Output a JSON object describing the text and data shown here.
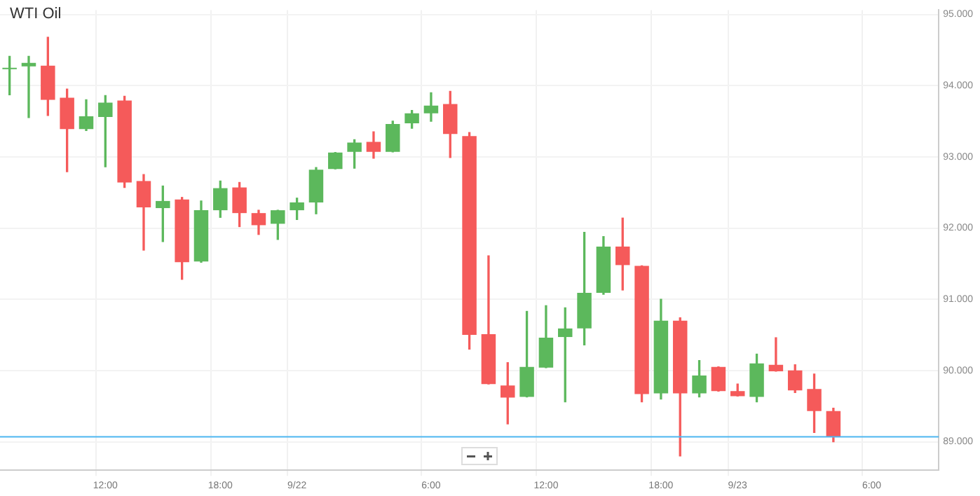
{
  "chart_data": {
    "type": "candlestick",
    "title": "WTI Oil",
    "categories": [
      null,
      null,
      null,
      null,
      null,
      "12:00",
      null,
      null,
      null,
      null,
      null,
      "18:00",
      null,
      null,
      null,
      "9/22",
      null,
      null,
      null,
      null,
      null,
      null,
      "6:00",
      null,
      null,
      null,
      null,
      null,
      "12:00",
      null,
      null,
      null,
      null,
      null,
      "18:00",
      null,
      null,
      null,
      "9/23",
      null,
      null,
      null,
      null,
      null,
      null,
      "6:00",
      null,
      null,
      null
    ],
    "ohlc": [
      [
        94.23,
        94.41,
        93.87,
        94.25
      ],
      [
        94.27,
        94.41,
        93.55,
        94.32
      ],
      [
        94.28,
        94.68,
        93.58,
        93.8
      ],
      [
        93.83,
        93.95,
        92.79,
        93.39
      ],
      [
        93.39,
        93.8,
        93.37,
        93.57
      ],
      [
        93.56,
        93.86,
        92.86,
        93.76
      ],
      [
        93.79,
        93.85,
        92.57,
        92.64
      ],
      [
        92.66,
        92.75,
        91.69,
        92.29
      ],
      [
        92.28,
        92.59,
        91.81,
        92.38
      ],
      [
        92.4,
        92.43,
        91.28,
        91.52
      ],
      [
        91.53,
        92.38,
        91.52,
        92.25
      ],
      [
        92.25,
        92.66,
        92.15,
        92.56
      ],
      [
        92.57,
        92.64,
        92.02,
        92.21
      ],
      [
        92.21,
        92.25,
        91.91,
        92.04
      ],
      [
        92.06,
        92.25,
        91.84,
        92.25
      ],
      [
        92.25,
        92.42,
        92.12,
        92.36
      ],
      [
        92.36,
        92.85,
        92.2,
        92.82
      ],
      [
        92.83,
        93.06,
        92.83,
        93.06
      ],
      [
        93.07,
        93.24,
        92.84,
        93.2
      ],
      [
        93.21,
        93.35,
        92.98,
        93.07
      ],
      [
        93.07,
        93.5,
        93.07,
        93.46
      ],
      [
        93.47,
        93.65,
        93.4,
        93.61
      ],
      [
        93.61,
        93.9,
        93.5,
        93.72
      ],
      [
        93.74,
        93.92,
        92.99,
        93.32
      ],
      [
        93.29,
        93.34,
        90.3,
        90.5
      ],
      [
        90.51,
        91.61,
        89.81,
        89.81
      ],
      [
        89.79,
        90.11,
        89.25,
        89.62
      ],
      [
        89.63,
        90.83,
        89.63,
        90.05
      ],
      [
        90.04,
        90.91,
        90.04,
        90.46
      ],
      [
        90.47,
        90.88,
        89.56,
        90.59
      ],
      [
        90.59,
        91.94,
        90.36,
        91.09
      ],
      [
        91.09,
        91.88,
        91.07,
        91.74
      ],
      [
        91.74,
        92.14,
        91.13,
        91.48
      ],
      [
        91.47,
        91.47,
        89.56,
        89.67
      ],
      [
        89.68,
        91.0,
        89.6,
        90.7
      ],
      [
        90.7,
        90.74,
        88.8,
        89.68
      ],
      [
        89.68,
        90.14,
        89.63,
        89.93
      ],
      [
        90.05,
        90.05,
        89.71,
        89.71
      ],
      [
        89.71,
        89.81,
        89.64,
        89.64
      ],
      [
        89.63,
        90.23,
        89.56,
        90.1
      ],
      [
        90.08,
        90.46,
        89.99,
        89.99
      ],
      [
        90.0,
        90.08,
        89.69,
        89.72
      ],
      [
        89.74,
        89.95,
        89.13,
        89.43
      ],
      [
        89.43,
        89.47,
        89.0,
        89.07
      ],
      null,
      null,
      null,
      null,
      null
    ],
    "ylim": [
      88.6,
      95.06
    ],
    "yticks": [
      {
        "value": 89,
        "label": "89.000"
      },
      {
        "value": 90,
        "label": "90.000"
      },
      {
        "value": 91,
        "label": "91.000"
      },
      {
        "value": 92,
        "label": "92.000"
      },
      {
        "value": 93,
        "label": "93.000"
      },
      {
        "value": 94,
        "label": "94.000"
      },
      {
        "value": 95,
        "label": "95.000"
      }
    ],
    "ref_lines": [
      {
        "axis": "y",
        "value": 89.07,
        "color": "#4db6f0"
      }
    ],
    "grid": true
  }
}
